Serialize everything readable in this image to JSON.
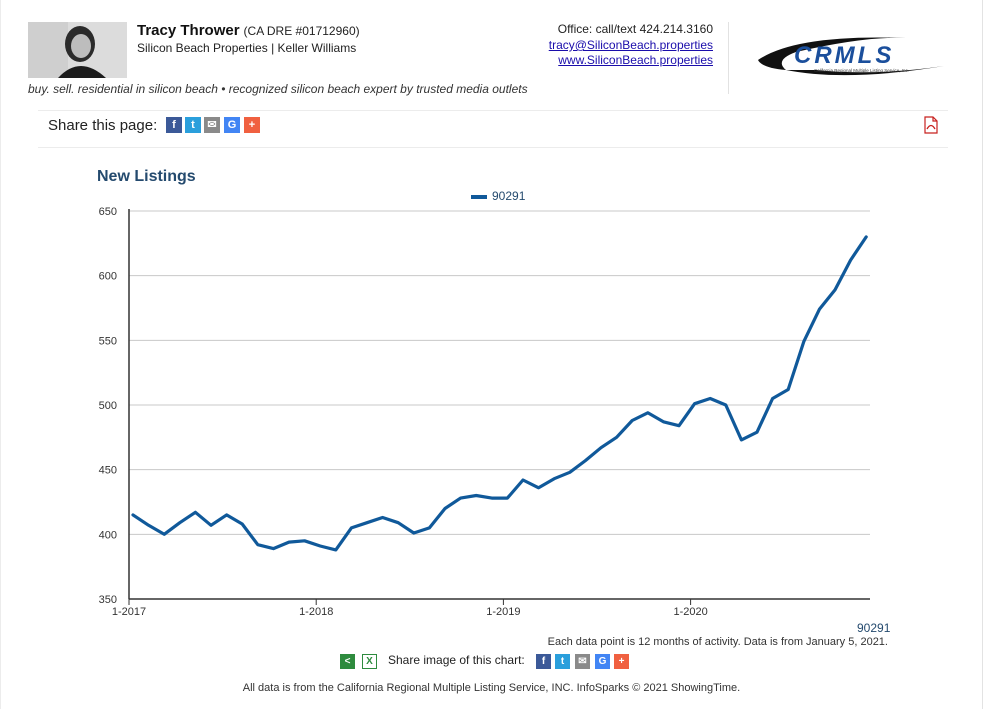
{
  "header": {
    "agent_name": "Tracy Thrower",
    "license": "(CA DRE #01712960)",
    "company": "Silicon Beach Properties | Keller Williams",
    "tagline": "buy. sell. residential in silicon beach • recognized silicon beach expert by trusted media outlets",
    "office": "Office: call/text 424.214.3160",
    "email": "tracy@SiliconBeach.properties",
    "website": "www.SiliconBeach.properties",
    "logo_text": "CRMLS",
    "logo_subtext": "California Regional Multiple Listing Service, Inc."
  },
  "share": {
    "label": "Share this page:",
    "icons": [
      "facebook-icon",
      "twitter-icon",
      "email-icon",
      "google-icon",
      "plus-icon"
    ]
  },
  "colors": {
    "series": "#10599a",
    "title": "#244a6e",
    "facebook": "#3b5998",
    "twitter": "#2a9fdc",
    "email": "#8a8a8a",
    "google": "#4285f4",
    "plus": "#f06040",
    "pdf": "#c8201e",
    "share_green": "#2e8b3e"
  },
  "chart_data": {
    "type": "line",
    "title": "New Listings",
    "legend": [
      "90291"
    ],
    "legend_placement": "top-center",
    "grid": true,
    "ylim": [
      350,
      650
    ],
    "yticks": [
      350,
      400,
      450,
      500,
      550,
      600,
      650
    ],
    "xtick_labels": [
      "1-2017",
      "1-2018",
      "1-2019",
      "1-2020"
    ],
    "x": [
      "2017-01",
      "2017-02",
      "2017-03",
      "2017-04",
      "2017-05",
      "2017-06",
      "2017-07",
      "2017-08",
      "2017-09",
      "2017-10",
      "2017-11",
      "2017-12",
      "2018-01",
      "2018-02",
      "2018-03",
      "2018-04",
      "2018-05",
      "2018-06",
      "2018-07",
      "2018-08",
      "2018-09",
      "2018-10",
      "2018-11",
      "2018-12",
      "2019-01",
      "2019-02",
      "2019-03",
      "2019-04",
      "2019-05",
      "2019-06",
      "2019-07",
      "2019-08",
      "2019-09",
      "2019-10",
      "2019-11",
      "2019-12",
      "2020-01",
      "2020-02",
      "2020-03",
      "2020-04",
      "2020-05",
      "2020-06",
      "2020-07",
      "2020-08",
      "2020-09",
      "2020-10",
      "2020-11",
      "2020-12"
    ],
    "series": [
      {
        "name": "90291",
        "values": [
          415,
          407,
          400,
          409,
          417,
          407,
          415,
          408,
          392,
          389,
          394,
          395,
          391,
          388,
          405,
          409,
          413,
          409,
          401,
          405,
          420,
          428,
          430,
          428,
          428,
          442,
          436,
          443,
          448,
          457,
          467,
          475,
          488,
          494,
          487,
          484,
          501,
          505,
          500,
          473,
          479,
          505,
          512,
          549,
          574,
          589,
          612,
          630
        ]
      }
    ],
    "series_end_label": "90291",
    "note": "Each data point is 12 months of activity. Data is from January 5, 2021."
  },
  "share_image": {
    "label": "Share image of this chart:"
  },
  "footer": "All data is from the California Regional Multiple Listing Service, INC. InfoSparks © 2021 ShowingTime."
}
